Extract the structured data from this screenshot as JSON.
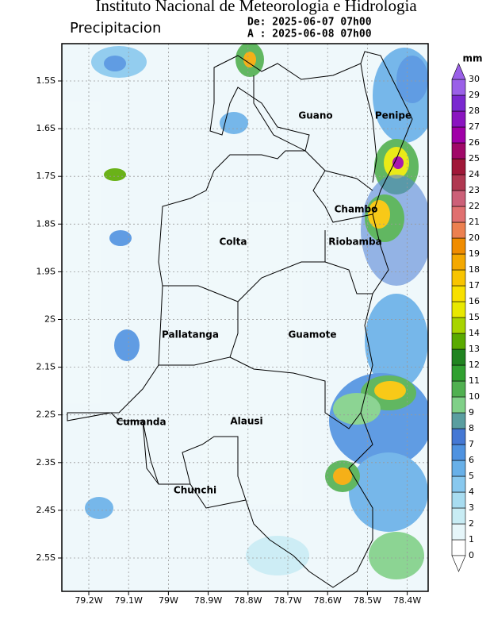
{
  "header": {
    "title": "Instituto Nacional de Meteorologia e Hidrologia",
    "subtitle": "Precipitacion",
    "date_from": "De: 2025-06-07 07h00",
    "date_to": "A : 2025-06-08 07h00"
  },
  "map": {
    "lon_labels": [
      "79.2W",
      "79.1W",
      "79W",
      "78.9W",
      "78.8W",
      "78.7W",
      "78.6W",
      "78.5W",
      "78.4W"
    ],
    "lat_labels": [
      "1.5S",
      "1.6S",
      "1.7S",
      "1.8S",
      "1.9S",
      "2S",
      "2.1S",
      "2.2S",
      "2.3S",
      "2.4S",
      "2.5S"
    ],
    "regions": [
      "Guano",
      "Penipe",
      "Chambo",
      "Colta",
      "Riobamba",
      "Pallatanga",
      "Guamote",
      "Cumanda",
      "Alausi",
      "Chunchi"
    ]
  },
  "colorbar": {
    "unit": "mm",
    "labels": [
      "0",
      "1",
      "2",
      "3",
      "4",
      "5",
      "6",
      "7",
      "8",
      "9",
      "10",
      "11",
      "12",
      "13",
      "14",
      "15",
      "16",
      "17",
      "18",
      "19",
      "20",
      "21",
      "22",
      "23",
      "24",
      "25",
      "26",
      "27",
      "28",
      "29",
      "30"
    ],
    "colors": [
      "#ffffff",
      "#e6f6fa",
      "#c8ecf4",
      "#a8dcf0",
      "#88c8ee",
      "#68b0e8",
      "#4f92e0",
      "#4578d4",
      "#5a9ea0",
      "#80d088",
      "#50b050",
      "#30a030",
      "#208420",
      "#5aaa00",
      "#a8d400",
      "#e8e800",
      "#f8e000",
      "#f8c400",
      "#f4a800",
      "#f08c00",
      "#ec8050",
      "#e07070",
      "#cc6078",
      "#b03850",
      "#a01838",
      "#a00868",
      "#a000a8",
      "#8a14c0",
      "#7a28d0",
      "#9a60e8"
    ]
  }
}
